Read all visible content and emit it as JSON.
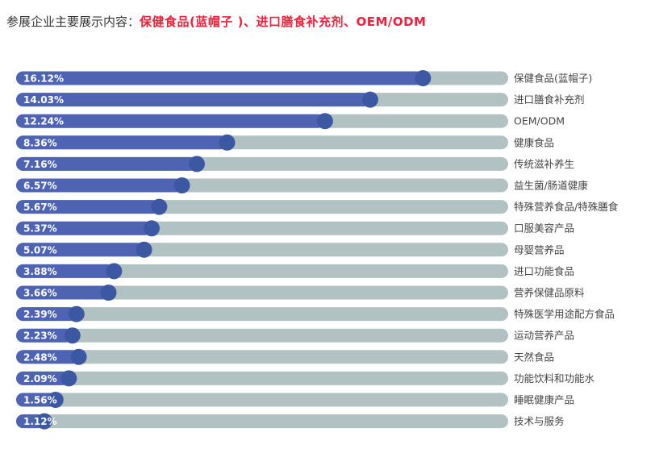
{
  "header": {
    "prefix": "参展企业主要展示内容：",
    "highlight": "保健食品(蓝帽子 )、进口膳食补充剂、OEM/ODM",
    "highlight_color": "#f0213c"
  },
  "colors": {
    "bar_fill": "#4f63b3",
    "bar_track": "#b2c1c1",
    "knob": "#3d58a3",
    "label_text": "#ffffff",
    "category_text": "#444444"
  },
  "chart_data": {
    "type": "bar",
    "orientation": "horizontal",
    "title": "",
    "xlabel": "",
    "ylabel": "",
    "xlim": [
      0,
      19.5
    ],
    "grid": false,
    "legend": "none",
    "categories": [
      "保健食品(蓝帽子)",
      "进口膳食补充剂",
      "OEM/ODM",
      "健康食品",
      "传统滋补养生",
      "益生菌/肠道健康",
      "特殊营养食品/特殊膳食",
      "口服美容产品",
      "母婴营养品",
      "进口功能食品",
      "营养保健品原料",
      "特殊医学用途配方食品",
      "运动营养产品",
      "天然食品",
      "功能饮料和功能水",
      "睡眠健康产品",
      "技术与服务"
    ],
    "values": [
      16.12,
      14.03,
      12.24,
      8.36,
      7.16,
      6.57,
      5.67,
      5.37,
      5.07,
      3.88,
      3.66,
      2.39,
      2.23,
      2.48,
      2.09,
      1.56,
      1.12
    ],
    "value_labels": [
      "16.12%",
      "14.03%",
      "12.24%",
      "8.36%",
      "7.16%",
      "6.57%",
      "5.67%",
      "5.37%",
      "5.07%",
      "3.88%",
      "3.66%",
      "2.39%",
      "2.23%",
      "2.48%",
      "2.09%",
      "1.56%",
      "1.12%"
    ]
  }
}
